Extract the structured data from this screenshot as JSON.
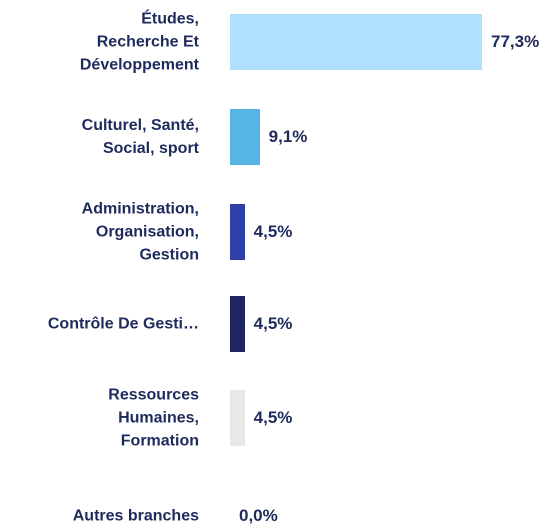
{
  "chart_data": {
    "type": "bar",
    "orientation": "horizontal",
    "categories": [
      "Études,\nRecherche Et\nDéveloppement",
      "Culturel, Santé,\nSocial, sport",
      "Administration,\nOrganisation,\nGestion",
      "Contrôle De Gesti…",
      "Ressources\nHumaines,\nFormation",
      "Autres branches"
    ],
    "values": [
      77.3,
      9.1,
      4.5,
      4.5,
      4.5,
      0.0
    ],
    "value_labels": [
      "77,3%",
      "9,1%",
      "4,5%",
      "4,5%",
      "4,5%",
      "0,0%"
    ],
    "colors": [
      "#aee1fb",
      "#55b6e6",
      "#2f3fa8",
      "#1d265f",
      "#e8e8e8",
      "#cccccc"
    ]
  }
}
